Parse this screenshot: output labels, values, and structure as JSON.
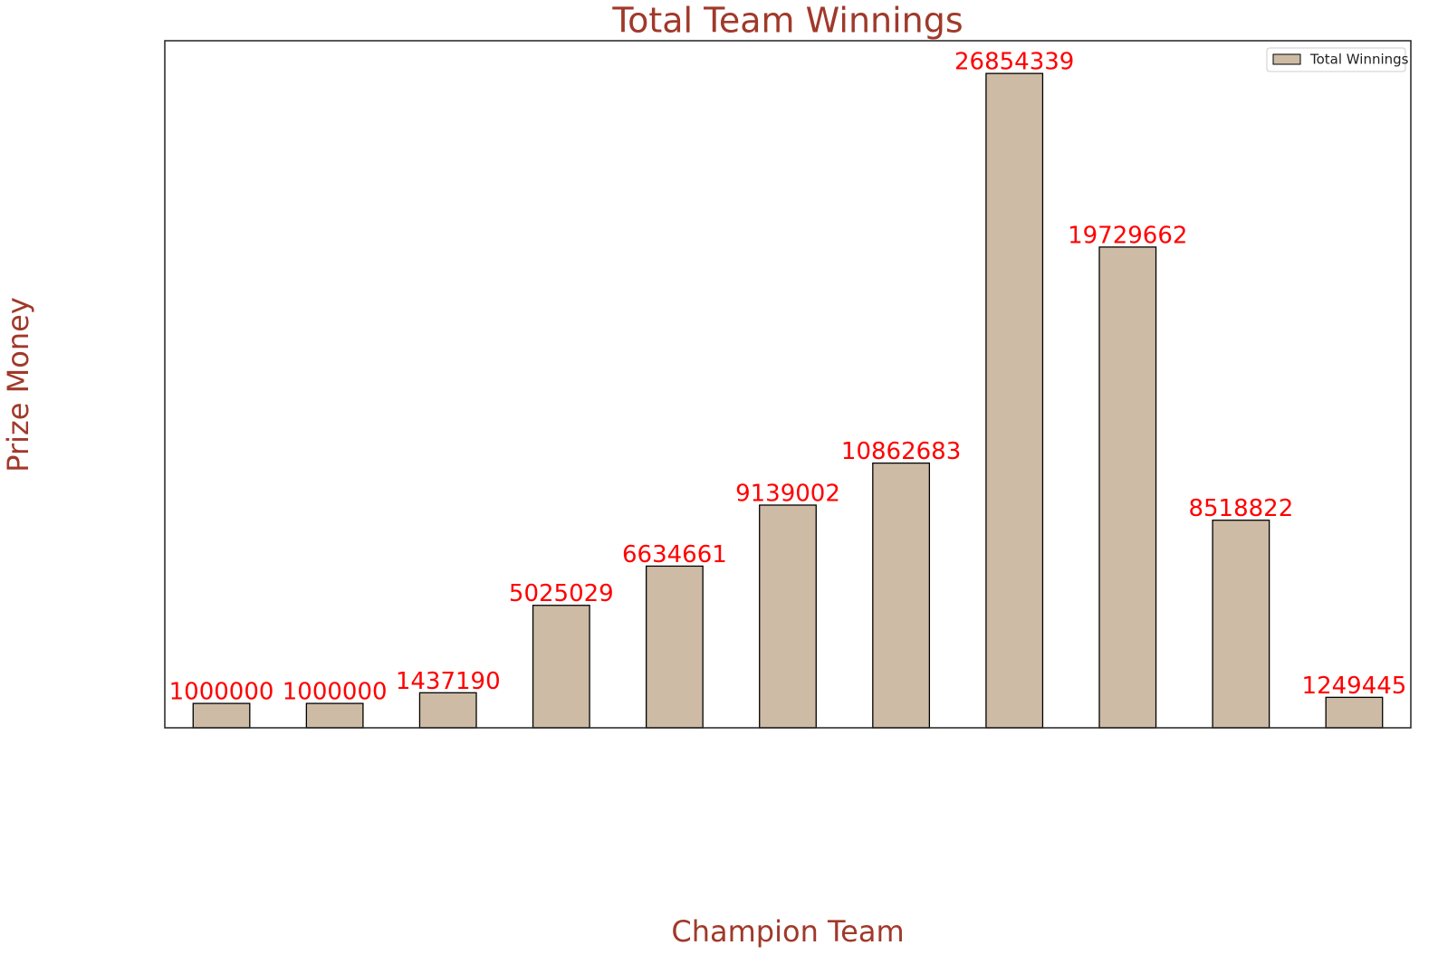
{
  "chart_data": {
    "type": "bar",
    "title": "Total Team Winnings",
    "xlabel": "Champion Team",
    "ylabel": "Prize Money",
    "categories": [
      null,
      null,
      null,
      null,
      null,
      null,
      null,
      null,
      null,
      null,
      null
    ],
    "series": [
      {
        "name": "Total Winnings",
        "color": "#cdbba5",
        "values": [
          1000000,
          1000000,
          1437190,
          5025029,
          6634661,
          9139002,
          10862683,
          26854339,
          19729662,
          8518822,
          1249445
        ]
      }
    ],
    "edgecolor": "#000000",
    "value_label_color": "#ff0000",
    "text_color": "#a0392a",
    "ylim": [
      0,
      28197056
    ],
    "legend": "upper right",
    "grid": false
  }
}
